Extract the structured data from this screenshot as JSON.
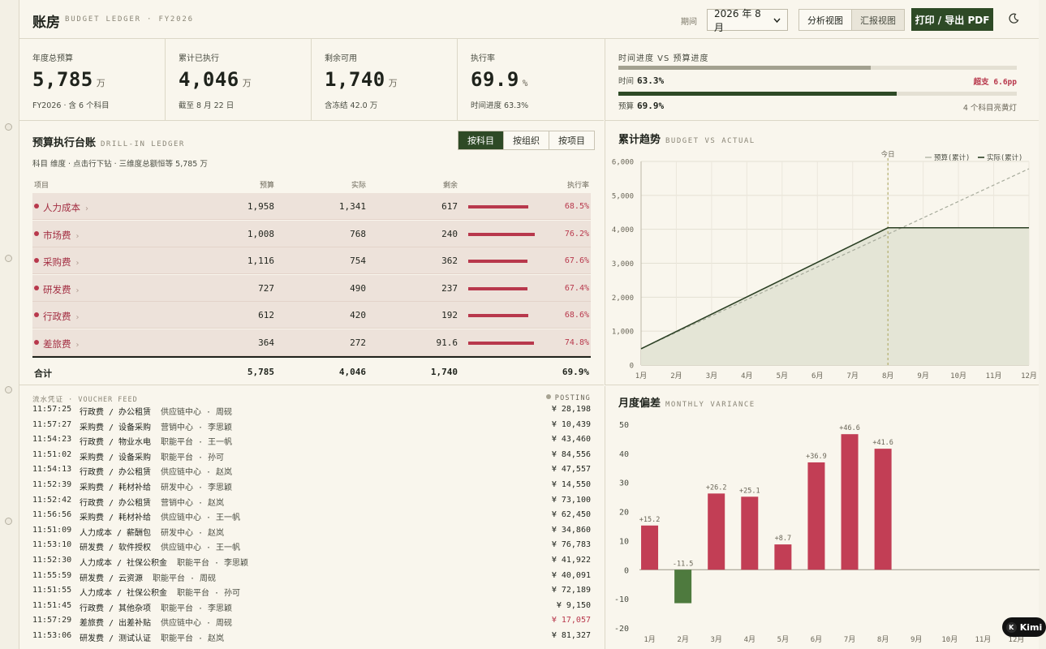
{
  "header": {
    "title": "账房",
    "subtitle": "BUDGET LEDGER · FY2026",
    "period_label": "期间",
    "period_value": "2026 年 8 月",
    "view_analysis": "分析视图",
    "view_report": "汇报视图",
    "print_label": "打印 / 导出 PDF"
  },
  "kpis": [
    {
      "label": "年度总预算",
      "value": "5,785",
      "unit": "万",
      "foot": "FY2026 · 含 6 个科目"
    },
    {
      "label": "累计已执行",
      "value": "4,046",
      "unit": "万",
      "foot": "截至 8 月 22 日"
    },
    {
      "label": "剩余可用",
      "value": "1,740",
      "unit": "万",
      "foot": "含冻结 42.0 万"
    },
    {
      "label": "执行率",
      "value": "69.9",
      "unit": "%",
      "foot": "时间进度 63.3%"
    }
  ],
  "progress": {
    "title": "时间进度 VS 预算进度",
    "time_label": "时间",
    "time_value": "63.3%",
    "time_fraction": 0.633,
    "over_label": "超支 6.6pp",
    "budget_label": "预算",
    "budget_value": "69.9%",
    "budget_fraction": 0.699,
    "note": "4 个科目亮黄灯"
  },
  "ledger": {
    "title": "预算执行台账",
    "subtitle": "DRILL-IN LEDGER",
    "tabs": [
      "按科目",
      "按组织",
      "按项目"
    ],
    "note": "科目 维度 · 点击行下钻 · 三维度总额恒等 5,785 万",
    "columns": {
      "item": "项目",
      "budget": "预算",
      "actual": "实际",
      "remaining": "剩余",
      "rate": "执行率"
    },
    "rows": [
      {
        "name": "人力成本",
        "budget": "1,958",
        "actual": "1,341",
        "remaining": "617",
        "rate": "68.5%",
        "ratio": 0.685
      },
      {
        "name": "市场费",
        "budget": "1,008",
        "actual": "768",
        "remaining": "240",
        "rate": "76.2%",
        "ratio": 0.762
      },
      {
        "name": "采购费",
        "budget": "1,116",
        "actual": "754",
        "remaining": "362",
        "rate": "67.6%",
        "ratio": 0.676
      },
      {
        "name": "研发费",
        "budget": "727",
        "actual": "490",
        "remaining": "237",
        "rate": "67.4%",
        "ratio": 0.674
      },
      {
        "name": "行政费",
        "budget": "612",
        "actual": "420",
        "remaining": "192",
        "rate": "68.6%",
        "ratio": 0.686
      },
      {
        "name": "差旅费",
        "budget": "364",
        "actual": "272",
        "remaining": "91.6",
        "rate": "74.8%",
        "ratio": 0.748
      }
    ],
    "total": {
      "name": "合计",
      "budget": "5,785",
      "actual": "4,046",
      "remaining": "1,740",
      "rate": "69.9%"
    }
  },
  "feed": {
    "title": "流水凭证 · VOUCHER FEED",
    "status": "POSTING",
    "items": [
      {
        "time": "11:57:25",
        "cat": "行政费 / 办公租赁",
        "org": "供应链中心 · 周砚",
        "amount": "¥ 28,198",
        "red": false
      },
      {
        "time": "11:57:27",
        "cat": "采购费 / 设备采购",
        "org": "营销中心 · 李思颖",
        "amount": "¥ 10,439",
        "red": false
      },
      {
        "time": "11:54:23",
        "cat": "行政费 / 物业水电",
        "org": "职能平台 · 王一帆",
        "amount": "¥ 43,460",
        "red": false
      },
      {
        "time": "11:51:02",
        "cat": "采购费 / 设备采购",
        "org": "职能平台 · 孙可",
        "amount": "¥ 84,556",
        "red": false
      },
      {
        "time": "11:54:13",
        "cat": "行政费 / 办公租赁",
        "org": "供应链中心 · 赵岚",
        "amount": "¥ 47,557",
        "red": false
      },
      {
        "time": "11:52:39",
        "cat": "采购费 / 耗材补给",
        "org": "研发中心 · 李思颖",
        "amount": "¥ 14,550",
        "red": false
      },
      {
        "time": "11:52:42",
        "cat": "行政费 / 办公租赁",
        "org": "营销中心 · 赵岚",
        "amount": "¥ 73,100",
        "red": false
      },
      {
        "time": "11:56:56",
        "cat": "采购费 / 耗材补给",
        "org": "供应链中心 · 王一帆",
        "amount": "¥ 62,450",
        "red": false
      },
      {
        "time": "11:51:09",
        "cat": "人力成本 / 薪酬包",
        "org": "研发中心 · 赵岚",
        "amount": "¥ 34,860",
        "red": false
      },
      {
        "time": "11:53:10",
        "cat": "研发费 / 软件授权",
        "org": "供应链中心 · 王一帆",
        "amount": "¥ 76,783",
        "red": false
      },
      {
        "time": "11:52:30",
        "cat": "人力成本 / 社保公积金",
        "org": "职能平台 · 李思颖",
        "amount": "¥ 41,922",
        "red": false
      },
      {
        "time": "11:55:59",
        "cat": "研发费 / 云资源",
        "org": "职能平台 · 周砚",
        "amount": "¥ 40,091",
        "red": false
      },
      {
        "time": "11:51:55",
        "cat": "人力成本 / 社保公积金",
        "org": "职能平台 · 孙可",
        "amount": "¥ 72,189",
        "red": false
      },
      {
        "time": "11:51:45",
        "cat": "行政费 / 其他杂项",
        "org": "职能平台 · 李思颖",
        "amount": "¥ 9,150",
        "red": false
      },
      {
        "time": "11:57:29",
        "cat": "差旅费 / 出差补贴",
        "org": "供应链中心 · 周砚",
        "amount": "¥ 17,057",
        "red": true
      },
      {
        "time": "11:53:06",
        "cat": "研发费 / 测试认证",
        "org": "职能平台 · 赵岚",
        "amount": "¥ 81,327",
        "red": false
      }
    ]
  },
  "colors": {
    "accent": "#2e4a26",
    "danger": "#b8384c",
    "positive": "#c23e55",
    "negative": "#4e7a3e"
  },
  "chart_data": [
    {
      "type": "line",
      "title": "累计趋势",
      "subtitle": "BUDGET VS ACTUAL",
      "today_label": "今日",
      "categories": [
        "1月",
        "2月",
        "3月",
        "4月",
        "5月",
        "6月",
        "7月",
        "8月",
        "9月",
        "10月",
        "11月",
        "12月"
      ],
      "ylim": [
        0,
        6000
      ],
      "yticks": [
        "0",
        "1,000",
        "2,000",
        "3,000",
        "4,000",
        "5,000",
        "6,000"
      ],
      "grid": true,
      "legend": "top-right",
      "series": [
        {
          "name": "预算(累计)",
          "style": "dashed",
          "x": [
            1,
            12
          ],
          "values": [
            482,
            5785
          ]
        },
        {
          "name": "实际(累计)",
          "style": "solid",
          "x": [
            1,
            8,
            12
          ],
          "values": [
            480,
            4046,
            4046
          ]
        }
      ]
    },
    {
      "type": "bar",
      "title": "月度偏差",
      "subtitle": "MONTHLY VARIANCE",
      "categories": [
        "1月",
        "2月",
        "3月",
        "4月",
        "5月",
        "6月",
        "7月",
        "8月",
        "9月",
        "10月",
        "11月",
        "12月"
      ],
      "values": [
        15.2,
        -11.5,
        26.2,
        25.1,
        8.7,
        36.9,
        46.6,
        41.6,
        null,
        null,
        null,
        null
      ],
      "labels": [
        "+15.2",
        "-11.5",
        "+26.2",
        "+25.1",
        "+8.7",
        "+36.9",
        "+46.6",
        "+41.6"
      ],
      "ylim": [
        -20,
        50
      ],
      "yticks": [
        "-20",
        "-10",
        "0",
        "10",
        "20",
        "30",
        "40",
        "50"
      ],
      "grid": false
    }
  ],
  "badge": {
    "label": "Kimi"
  }
}
